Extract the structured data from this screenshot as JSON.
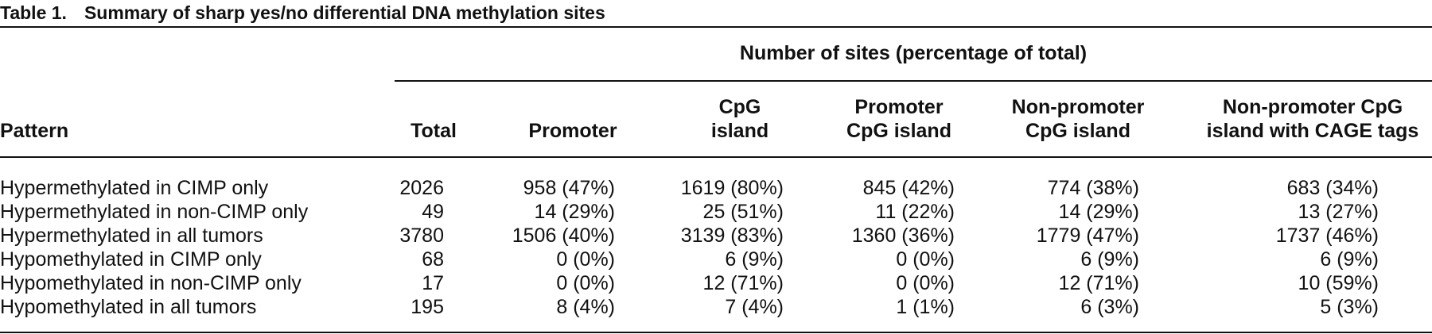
{
  "caption": {
    "number": "Table 1.",
    "title": "Summary of sharp yes/no differential DNA methylation sites"
  },
  "table": {
    "spanning_header": "Number of sites (percentage of total)",
    "columns": [
      {
        "line1": "Pattern",
        "line2": ""
      },
      {
        "line1": "Total",
        "line2": ""
      },
      {
        "line1": "Promoter",
        "line2": ""
      },
      {
        "line1": "CpG",
        "line2": "island"
      },
      {
        "line1": "Promoter",
        "line2": "CpG island"
      },
      {
        "line1": "Non-promoter",
        "line2": "CpG island"
      },
      {
        "line1": "Non-promoter CpG",
        "line2": "island with CAGE tags"
      }
    ],
    "rows": [
      {
        "pattern": "Hypermethylated in CIMP only",
        "total": "2026",
        "promoter": "958 (47%)",
        "cpg_island": "1619 (80%)",
        "promoter_cpg": "845 (42%)",
        "nonpromoter_cpg": "774 (38%)",
        "nonpromoter_cage": "683 (34%)"
      },
      {
        "pattern": "Hypermethylated in non-CIMP only",
        "total": "49",
        "promoter": "14 (29%)",
        "cpg_island": "25 (51%)",
        "promoter_cpg": "11 (22%)",
        "nonpromoter_cpg": "14 (29%)",
        "nonpromoter_cage": "13 (27%)"
      },
      {
        "pattern": "Hypermethylated in all tumors",
        "total": "3780",
        "promoter": "1506 (40%)",
        "cpg_island": "3139 (83%)",
        "promoter_cpg": "1360 (36%)",
        "nonpromoter_cpg": "1779 (47%)",
        "nonpromoter_cage": "1737 (46%)"
      },
      {
        "pattern": "Hypomethylated in CIMP only",
        "total": "68",
        "promoter": "0 (0%)",
        "cpg_island": "6 (9%)",
        "promoter_cpg": "0 (0%)",
        "nonpromoter_cpg": "6 (9%)",
        "nonpromoter_cage": "6 (9%)"
      },
      {
        "pattern": "Hypomethylated in non-CIMP only",
        "total": "17",
        "promoter": "0 (0%)",
        "cpg_island": "12 (71%)",
        "promoter_cpg": "0 (0%)",
        "nonpromoter_cpg": "12 (71%)",
        "nonpromoter_cage": "10 (59%)"
      },
      {
        "pattern": "Hypomethylated in all tumors",
        "total": "195",
        "promoter": "8 (4%)",
        "cpg_island": "7 (4%)",
        "promoter_cpg": "1 (1%)",
        "nonpromoter_cpg": "6 (3%)",
        "nonpromoter_cage": "5 (3%)"
      }
    ]
  }
}
